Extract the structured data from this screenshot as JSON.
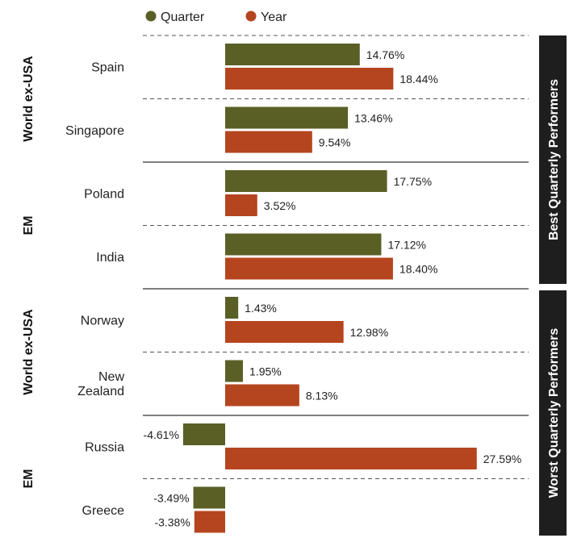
{
  "chart_data": {
    "type": "bar",
    "orientation": "horizontal",
    "legend": [
      {
        "name": "Quarter",
        "color": "#5a5f26"
      },
      {
        "name": "Year",
        "color": "#b5451f"
      }
    ],
    "categories": [
      {
        "label": "Spain",
        "quarter": 14.76,
        "year": 18.44
      },
      {
        "label": "Singapore",
        "quarter": 13.46,
        "year": 9.54
      },
      {
        "label": "Poland",
        "quarter": 17.75,
        "year": 3.52
      },
      {
        "label": "India",
        "quarter": 17.12,
        "year": 18.4
      },
      {
        "label": "Norway",
        "quarter": 1.43,
        "year": 12.98
      },
      {
        "label": "New\nZealand",
        "quarter": 1.95,
        "year": 8.13
      },
      {
        "label": "Russia",
        "quarter": -4.61,
        "year": 27.59
      },
      {
        "label": "Greece",
        "quarter": -3.49,
        "year": -3.38
      }
    ],
    "value_labels": {
      "quarter": [
        "14.76%",
        "13.46%",
        "17.75%",
        "17.12%",
        "1.43%",
        "1.95%",
        "-4.61%",
        "-3.49%"
      ],
      "year": [
        "18.44%",
        "9.54%",
        "3.52%",
        "18.40%",
        "12.98%",
        "8.13%",
        "27.59%",
        "-3.38%"
      ]
    },
    "region_groups": [
      {
        "label": "World ex-USA",
        "categories": [
          "Spain",
          "Singapore"
        ]
      },
      {
        "label": "EM",
        "categories": [
          "Poland",
          "India"
        ]
      },
      {
        "label": "World ex-USA",
        "categories": [
          "Norway",
          "New Zealand"
        ]
      },
      {
        "label": "EM",
        "categories": [
          "Russia",
          "Greece"
        ]
      }
    ],
    "side_panels": [
      {
        "label": "Best Quarterly Performers",
        "categories": [
          "Spain",
          "Singapore",
          "Poland",
          "India"
        ]
      },
      {
        "label": "Worst Quarterly Performers",
        "categories": [
          "Norway",
          "New Zealand",
          "Russia",
          "Greece"
        ]
      }
    ],
    "grid": false,
    "legend_position": "top"
  }
}
